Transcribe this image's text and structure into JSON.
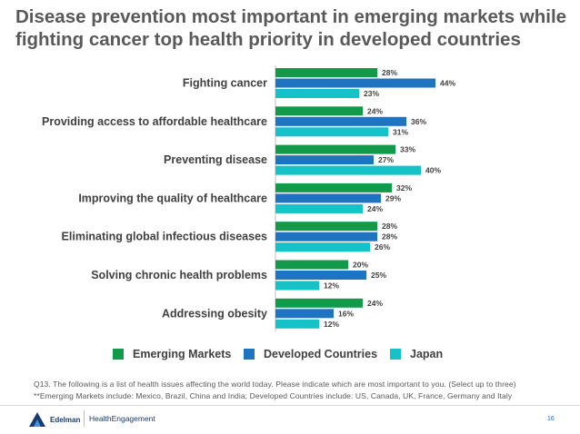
{
  "title": "Disease prevention most important in emerging markets while fighting cancer top health priority in developed countries",
  "colors": {
    "emerging": "#12994a",
    "developed": "#1f74c2",
    "japan": "#15c2c8"
  },
  "chart_data": {
    "type": "bar",
    "orientation": "horizontal",
    "categories": [
      "Fighting cancer",
      "Providing access to affordable healthcare",
      "Preventing disease",
      "Improving the quality of healthcare",
      "Eliminating global infectious diseases",
      "Solving chronic health problems",
      "Addressing obesity"
    ],
    "series": [
      {
        "name": "Emerging Markets",
        "values": [
          28,
          24,
          33,
          32,
          28,
          20,
          24
        ]
      },
      {
        "name": "Developed Countries",
        "values": [
          44,
          36,
          27,
          29,
          28,
          25,
          16
        ]
      },
      {
        "name": "Japan",
        "values": [
          23,
          31,
          40,
          24,
          26,
          12,
          12
        ]
      }
    ],
    "value_suffix": "%",
    "legend_position": "bottom",
    "grid": false
  },
  "legend": {
    "emerging": "Emerging Markets",
    "developed": "Developed Countries",
    "japan": "Japan"
  },
  "footnotes": {
    "line1": "Q13. The following is a list of health issues affecting the world today. Please indicate which are most important to you.  (Select up to three)",
    "line2": "**Emerging Markets include: Mexico, Brazil, China and India; Developed Countries include: US, Canada, UK, France, Germany and Italy"
  },
  "footer": {
    "logo_text": "Edelman",
    "brand": "HealthEngagement",
    "page_number": "16"
  }
}
